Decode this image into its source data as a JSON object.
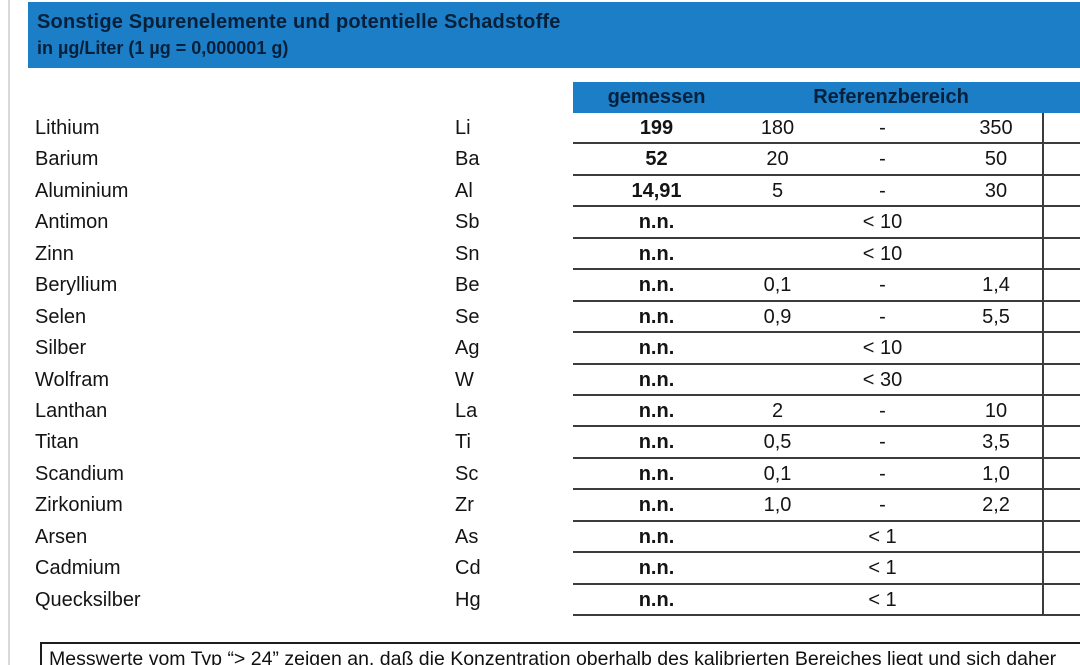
{
  "header": {
    "title": "Sonstige Spurenelemente und potentielle Schadstoffe",
    "subtitle": "in µg/Liter (1 µg = 0,000001 g)"
  },
  "table": {
    "columns": {
      "measured": "gemessen",
      "reference": "Referenzbereich"
    },
    "rows": [
      {
        "name": "Lithium",
        "symbol": "Li",
        "measured": "199",
        "ref_min": "180",
        "ref_dash": "-",
        "ref_max": "350"
      },
      {
        "name": "Barium",
        "symbol": "Ba",
        "measured": "52",
        "ref_min": "20",
        "ref_dash": "-",
        "ref_max": "50"
      },
      {
        "name": "Aluminium",
        "symbol": "Al",
        "measured": "14,91",
        "ref_min": "5",
        "ref_dash": "-",
        "ref_max": "30"
      },
      {
        "name": "Antimon",
        "symbol": "Sb",
        "measured": "n.n.",
        "ref_limit": "< 10"
      },
      {
        "name": "Zinn",
        "symbol": "Sn",
        "measured": "n.n.",
        "ref_limit": "< 10"
      },
      {
        "name": "Beryllium",
        "symbol": "Be",
        "measured": "n.n.",
        "ref_min": "0,1",
        "ref_dash": "-",
        "ref_max": "1,4"
      },
      {
        "name": "Selen",
        "symbol": "Se",
        "measured": "n.n.",
        "ref_min": "0,9",
        "ref_dash": "-",
        "ref_max": "5,5"
      },
      {
        "name": "Silber",
        "symbol": "Ag",
        "measured": "n.n.",
        "ref_limit": "< 10"
      },
      {
        "name": "Wolfram",
        "symbol": "W",
        "measured": "n.n.",
        "ref_limit": "< 30"
      },
      {
        "name": "Lanthan",
        "symbol": "La",
        "measured": "n.n.",
        "ref_min": "2",
        "ref_dash": "-",
        "ref_max": "10"
      },
      {
        "name": "Titan",
        "symbol": "Ti",
        "measured": "n.n.",
        "ref_min": "0,5",
        "ref_dash": "-",
        "ref_max": "3,5"
      },
      {
        "name": "Scandium",
        "symbol": "Sc",
        "measured": "n.n.",
        "ref_min": "0,1",
        "ref_dash": "-",
        "ref_max": "1,0"
      },
      {
        "name": "Zirkonium",
        "symbol": "Zr",
        "measured": "n.n.",
        "ref_min": "1,0",
        "ref_dash": "-",
        "ref_max": "2,2"
      },
      {
        "name": "Arsen",
        "symbol": "As",
        "measured": "n.n.",
        "ref_limit": "< 1"
      },
      {
        "name": "Cadmium",
        "symbol": "Cd",
        "measured": "n.n.",
        "ref_limit": "< 1"
      },
      {
        "name": "Quecksilber",
        "symbol": "Hg",
        "measured": "n.n.",
        "ref_limit": "< 1"
      }
    ]
  },
  "footnote": {
    "text": "Messwerte vom Typ “> 24” zeigen an, daß die Konzentration oberhalb des kalibrierten Bereiches liegt und sich daher"
  },
  "colors": {
    "accent_blue": "#1c7ec7",
    "header_text": "#07203a",
    "line": "#3c3c3c"
  }
}
